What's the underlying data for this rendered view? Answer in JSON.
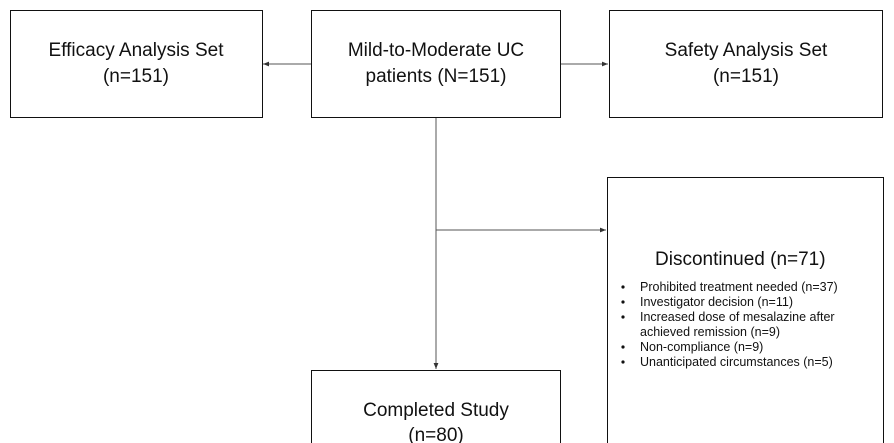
{
  "nodes": [
    {
      "lines": [
        "Efficacy Analysis Set",
        "(n=151)"
      ]
    },
    {
      "lines": [
        "Mild-to-Moderate UC",
        "patients (N=151)"
      ]
    },
    {
      "lines": [
        "Safety Analysis Set",
        "(n=151)"
      ]
    },
    {
      "lines": [
        "Completed Study",
        "(n=80)"
      ]
    },
    {
      "title": "Discontinued (n=71)",
      "reasons": [
        "Prohibited treatment needed (n=37)",
        "Investigator decision (n=11)",
        "Increased dose of mesalazine after achieved remission (n=9)",
        "Non-compliance (n=9)",
        "Unanticipated circumstances (n=5)"
      ]
    }
  ]
}
